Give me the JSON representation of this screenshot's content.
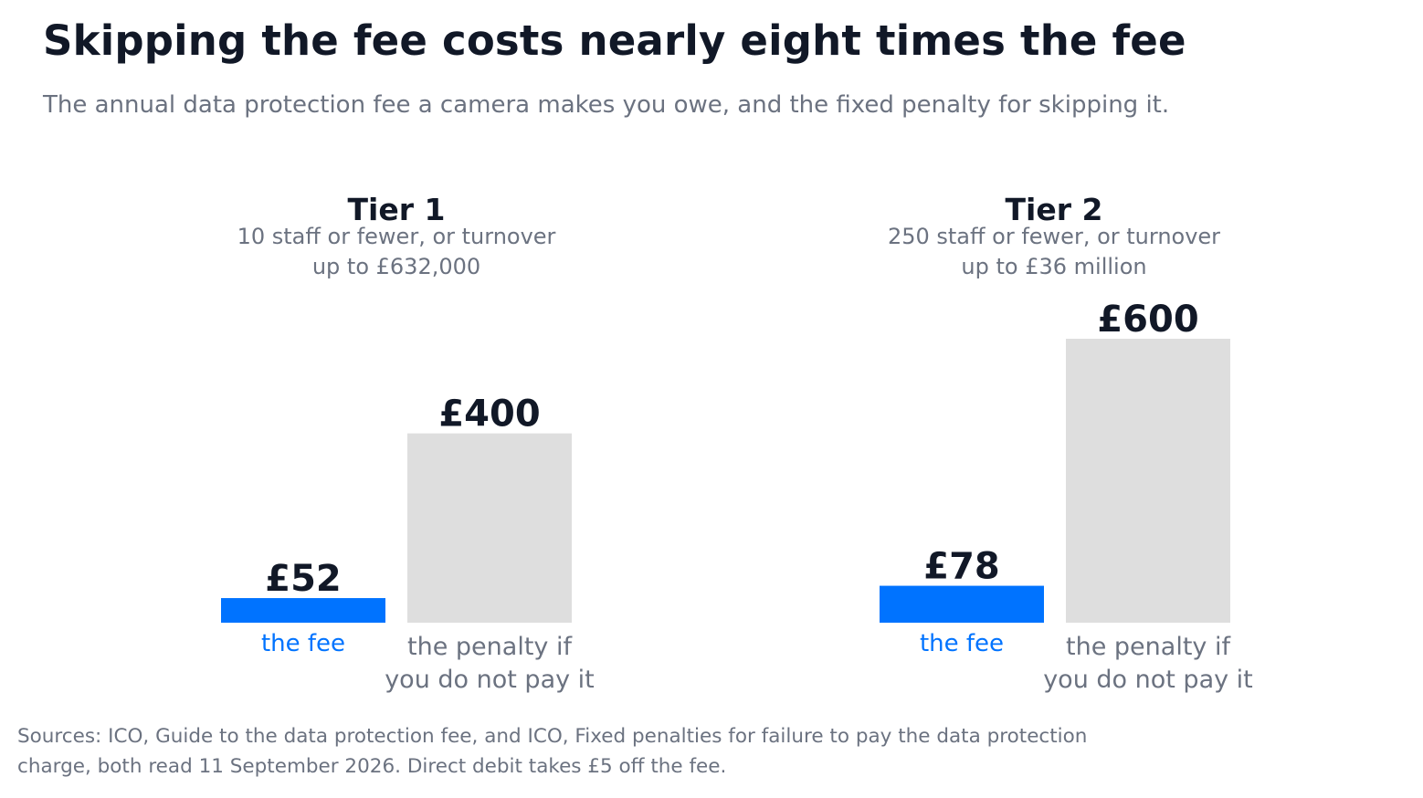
{
  "title": "Skipping the fee costs nearly eight times the fee",
  "subtitle": "The annual data protection fee a camera makes you owe, and the fixed penalty for skipping it.",
  "source": "Sources: ICO, Guide to the data protection fee, and ICO, Fixed penalties for failure to pay the data protection charge, both read 11 September 2026. Direct debit takes £5 off the fee.",
  "colors": {
    "fee": "#0073FF",
    "penalty": "#DEDEDE",
    "title_text": "#111827",
    "muted_text": "#6B7280"
  },
  "chart_data": {
    "type": "bar",
    "currency": "£",
    "grid": false,
    "legend": "none",
    "ylim": [
      0,
      600
    ],
    "categories": [
      "the fee",
      "the penalty if you do not pay it"
    ],
    "category_lines": [
      [
        "the fee"
      ],
      [
        "the penalty if",
        "you do not pay it"
      ]
    ],
    "panels": [
      {
        "name": "Tier 1",
        "description_lines": [
          "10 staff or fewer, or turnover",
          "up to £632,000"
        ],
        "values": [
          52,
          400
        ],
        "value_labels": [
          "£52",
          "£400"
        ]
      },
      {
        "name": "Tier 2",
        "description_lines": [
          "250 staff or fewer, or turnover",
          "up to £36 million"
        ],
        "values": [
          78,
          600
        ],
        "value_labels": [
          "£78",
          "£600"
        ]
      }
    ]
  }
}
